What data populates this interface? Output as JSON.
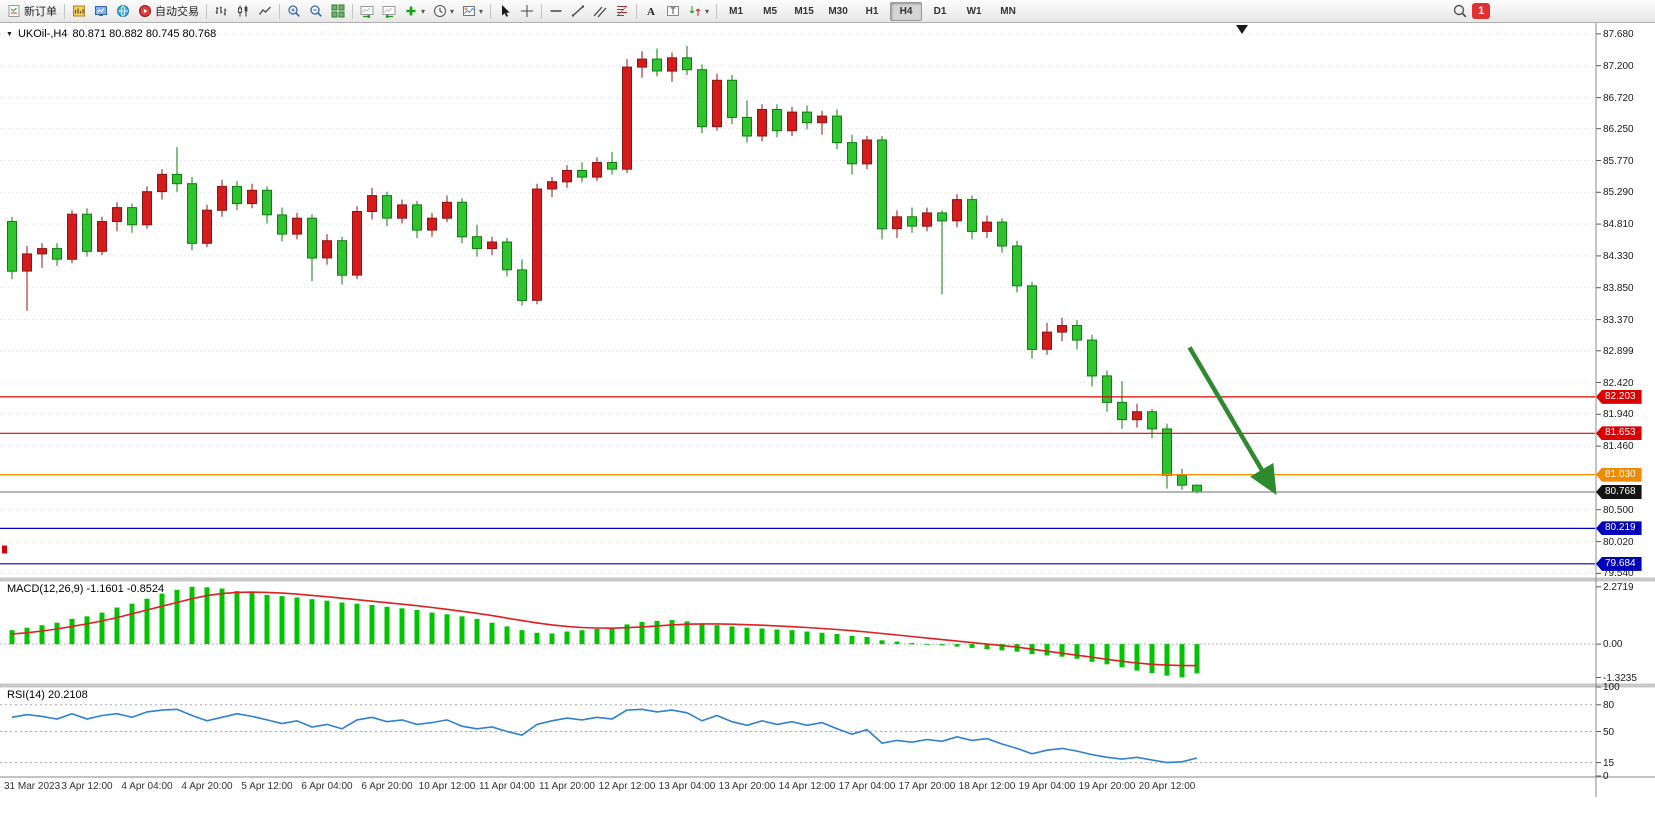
{
  "toolbar": {
    "new_order_label": "新订单",
    "autotrading_label": "自动交易",
    "timeframes": [
      "M1",
      "M5",
      "M15",
      "M30",
      "H1",
      "H4",
      "D1",
      "W1",
      "MN"
    ],
    "active_timeframe": "H4",
    "notification_count": "1",
    "icon_names": [
      "new-order-icon",
      "new-chart-icon",
      "profiles-icon",
      "community-icon",
      "autotrading-icon",
      "bar-chart-icon",
      "candlestick-chart-icon",
      "line-chart-icon",
      "zoom-in-icon",
      "zoom-out-icon",
      "tile-windows-icon",
      "auto-scroll-icon",
      "chart-shift-icon",
      "indicators-icon",
      "periods-icon",
      "templates-icon",
      "cursor-icon",
      "crosshair-icon",
      "horizontal-line-icon",
      "trendline-icon",
      "equidistant-channel-icon",
      "fibonacci-icon",
      "text-icon",
      "label-icon",
      "arrows-icon",
      "search-icon"
    ]
  },
  "chart": {
    "symbol_title": "UKOil-,H4",
    "ohlc": "80.871 80.882 80.745 80.768",
    "price_axis": [
      "87.680",
      "87.200",
      "86.720",
      "86.250",
      "85.770",
      "85.290",
      "84.810",
      "84.330",
      "83.850",
      "83.370",
      "82.899",
      "82.420",
      "81.940",
      "81.460",
      "80.500",
      "80.020",
      "79.540"
    ],
    "price_lines": [
      {
        "label": "82.203",
        "value": 82.203,
        "color": "#dd0000",
        "tag": "#dd0000"
      },
      {
        "label": "81.653",
        "value": 81.653,
        "color": "#dd0000",
        "tag": "#dd0000"
      },
      {
        "label": "81.030",
        "value": 81.03,
        "color": "#ff8a00",
        "tag": "#f08a00"
      },
      {
        "label": "80.768",
        "value": 80.768,
        "color": "#8a8a8a",
        "tag": "#141414"
      },
      {
        "label": "80.219",
        "value": 80.219,
        "color": "#0000cc",
        "tag": "#0000bb"
      },
      {
        "label": "79.684",
        "value": 79.684,
        "color": "#0000cc",
        "tag": "#0000bb"
      }
    ],
    "objects": {
      "trend_arrow": {
        "from_index": 78.5,
        "from_price": 82.95,
        "to_index": 84,
        "to_price": 80.84,
        "color": "#2d8a2d"
      },
      "left_marker_price": 79.9
    },
    "time_axis": [
      "31 Mar 2023",
      "3 Apr 12:00",
      "4 Apr 04:00",
      "4 Apr 20:00",
      "5 Apr 12:00",
      "6 Apr 04:00",
      "6 Apr 20:00",
      "10 Apr 12:00",
      "11 Apr 04:00",
      "11 Apr 20:00",
      "12 Apr 12:00",
      "13 Apr 04:00",
      "13 Apr 20:00",
      "14 Apr 12:00",
      "17 Apr 04:00",
      "17 Apr 20:00",
      "18 Apr 12:00",
      "19 Apr 04:00",
      "19 Apr 20:00",
      "20 Apr 12:00"
    ]
  },
  "indicators": {
    "macd": {
      "label": "MACD(12,26,9) -1.1601 -0.8524",
      "main_value": "-1.1601",
      "signal_value": "-0.8524",
      "axis": [
        {
          "label": "2.2719",
          "v": 2.2719
        },
        {
          "label": "0.00",
          "v": 0
        },
        {
          "label": "-1.3235",
          "v": -1.3235
        }
      ]
    },
    "rsi": {
      "label": "RSI(14) 20.2108",
      "value": "20.2108",
      "axis": [
        {
          "label": "100",
          "v": 100
        },
        {
          "label": "80",
          "v": 80
        },
        {
          "label": "50",
          "v": 50
        },
        {
          "label": "15",
          "v": 15
        },
        {
          "label": "0",
          "v": 0
        }
      ],
      "levels": [
        80,
        50,
        15
      ]
    }
  },
  "chart_data": {
    "type": "candlestick",
    "symbol": "UKOil-",
    "timeframe": "H4",
    "price_range": [
      79.47,
      87.83
    ],
    "colors": {
      "bull": "#d41c1c",
      "bear": "#2fc42f",
      "macd_histogram": "#00c400",
      "macd_signal": "#e02020",
      "rsi_line": "#2f80d0"
    },
    "candles": [
      [
        84.85,
        84.92,
        83.98,
        84.1
      ],
      [
        84.1,
        84.48,
        83.5,
        84.36
      ],
      [
        84.36,
        84.52,
        84.15,
        84.44
      ],
      [
        84.44,
        84.52,
        84.18,
        84.28
      ],
      [
        84.28,
        85.02,
        84.22,
        84.96
      ],
      [
        84.96,
        85.05,
        84.32,
        84.4
      ],
      [
        84.4,
        84.92,
        84.34,
        84.85
      ],
      [
        84.85,
        85.14,
        84.7,
        85.06
      ],
      [
        85.06,
        85.12,
        84.68,
        84.8
      ],
      [
        84.8,
        85.38,
        84.74,
        85.3
      ],
      [
        85.3,
        85.64,
        85.18,
        85.56
      ],
      [
        85.56,
        85.97,
        85.3,
        85.42
      ],
      [
        85.42,
        85.52,
        84.42,
        84.52
      ],
      [
        84.52,
        85.1,
        84.46,
        85.02
      ],
      [
        85.02,
        85.48,
        84.92,
        85.38
      ],
      [
        85.38,
        85.46,
        85.02,
        85.12
      ],
      [
        85.12,
        85.42,
        85.05,
        85.32
      ],
      [
        85.32,
        85.38,
        84.82,
        84.95
      ],
      [
        84.95,
        85.06,
        84.55,
        84.66
      ],
      [
        84.66,
        84.98,
        84.58,
        84.9
      ],
      [
        84.9,
        84.96,
        83.95,
        84.3
      ],
      [
        84.3,
        84.66,
        84.2,
        84.56
      ],
      [
        84.56,
        84.62,
        83.9,
        84.04
      ],
      [
        84.04,
        85.08,
        83.98,
        85.0
      ],
      [
        85.0,
        85.36,
        84.88,
        85.24
      ],
      [
        85.24,
        85.3,
        84.78,
        84.9
      ],
      [
        84.9,
        85.18,
        84.82,
        85.1
      ],
      [
        85.1,
        85.16,
        84.6,
        84.72
      ],
      [
        84.72,
        84.98,
        84.62,
        84.9
      ],
      [
        84.9,
        85.24,
        84.84,
        85.14
      ],
      [
        85.14,
        85.2,
        84.52,
        84.62
      ],
      [
        84.62,
        84.8,
        84.32,
        84.44
      ],
      [
        84.44,
        84.62,
        84.34,
        84.54
      ],
      [
        84.54,
        84.6,
        84.02,
        84.12
      ],
      [
        84.12,
        84.28,
        83.58,
        83.66
      ],
      [
        83.66,
        85.42,
        83.6,
        85.34
      ],
      [
        85.34,
        85.52,
        85.22,
        85.45
      ],
      [
        85.45,
        85.7,
        85.36,
        85.62
      ],
      [
        85.62,
        85.74,
        85.44,
        85.52
      ],
      [
        85.52,
        85.82,
        85.46,
        85.74
      ],
      [
        85.74,
        85.9,
        85.56,
        85.64
      ],
      [
        85.64,
        87.3,
        85.58,
        87.18
      ],
      [
        87.18,
        87.42,
        87.02,
        87.3
      ],
      [
        87.3,
        87.46,
        87.04,
        87.12
      ],
      [
        87.12,
        87.4,
        86.96,
        87.32
      ],
      [
        87.32,
        87.5,
        87.06,
        87.14
      ],
      [
        87.14,
        87.22,
        86.18,
        86.28
      ],
      [
        86.28,
        87.08,
        86.22,
        86.98
      ],
      [
        86.98,
        87.06,
        86.32,
        86.42
      ],
      [
        86.42,
        86.68,
        86.04,
        86.14
      ],
      [
        86.14,
        86.62,
        86.06,
        86.54
      ],
      [
        86.54,
        86.62,
        86.12,
        86.22
      ],
      [
        86.22,
        86.58,
        86.14,
        86.5
      ],
      [
        86.5,
        86.6,
        86.24,
        86.34
      ],
      [
        86.34,
        86.52,
        86.16,
        86.44
      ],
      [
        86.44,
        86.54,
        85.94,
        86.04
      ],
      [
        86.04,
        86.16,
        85.56,
        85.72
      ],
      [
        85.72,
        86.14,
        85.64,
        86.08
      ],
      [
        86.08,
        86.14,
        84.58,
        84.74
      ],
      [
        84.74,
        85.02,
        84.6,
        84.92
      ],
      [
        84.92,
        85.06,
        84.68,
        84.78
      ],
      [
        84.78,
        85.06,
        84.7,
        84.98
      ],
      [
        84.98,
        85.02,
        83.75,
        84.86
      ],
      [
        84.86,
        85.26,
        84.76,
        85.18
      ],
      [
        85.18,
        85.24,
        84.58,
        84.7
      ],
      [
        84.7,
        84.94,
        84.6,
        84.84
      ],
      [
        84.84,
        84.9,
        84.38,
        84.48
      ],
      [
        84.48,
        84.56,
        83.78,
        83.88
      ],
      [
        83.88,
        83.94,
        82.78,
        82.92
      ],
      [
        82.92,
        83.32,
        82.84,
        83.18
      ],
      [
        83.18,
        83.4,
        83.04,
        83.28
      ],
      [
        83.28,
        83.36,
        82.92,
        83.06
      ],
      [
        83.06,
        83.14,
        82.36,
        82.52
      ],
      [
        82.52,
        82.6,
        81.98,
        82.12
      ],
      [
        82.12,
        82.44,
        81.72,
        81.86
      ],
      [
        81.86,
        82.1,
        81.74,
        81.98
      ],
      [
        81.98,
        82.02,
        81.58,
        81.72
      ],
      [
        81.72,
        81.8,
        80.82,
        81.02
      ],
      [
        81.02,
        81.12,
        80.8,
        80.87
      ],
      [
        80.871,
        80.882,
        80.745,
        80.768
      ]
    ],
    "macd": {
      "range": [
        -1.58,
        2.5
      ],
      "histogram": [
        0.55,
        0.65,
        0.75,
        0.85,
        1.0,
        1.1,
        1.25,
        1.45,
        1.6,
        1.8,
        2.0,
        2.15,
        2.27,
        2.25,
        2.2,
        2.1,
        2.05,
        1.95,
        1.9,
        1.85,
        1.78,
        1.72,
        1.65,
        1.6,
        1.55,
        1.48,
        1.42,
        1.35,
        1.25,
        1.18,
        1.1,
        1.0,
        0.85,
        0.7,
        0.55,
        0.45,
        0.42,
        0.5,
        0.55,
        0.6,
        0.62,
        0.78,
        0.88,
        0.92,
        0.95,
        0.9,
        0.8,
        0.75,
        0.7,
        0.65,
        0.62,
        0.58,
        0.55,
        0.5,
        0.45,
        0.4,
        0.32,
        0.28,
        0.15,
        0.1,
        0.05,
        0.0,
        -0.05,
        -0.1,
        -0.15,
        -0.2,
        -0.25,
        -0.3,
        -0.4,
        -0.45,
        -0.5,
        -0.58,
        -0.7,
        -0.8,
        -0.92,
        -1.05,
        -1.15,
        -1.25,
        -1.32,
        -1.16
      ],
      "signal": [
        0.4,
        0.45,
        0.52,
        0.6,
        0.7,
        0.8,
        0.92,
        1.05,
        1.2,
        1.35,
        1.5,
        1.65,
        1.8,
        1.92,
        2.0,
        2.05,
        2.06,
        2.05,
        2.02,
        1.98,
        1.93,
        1.88,
        1.82,
        1.76,
        1.7,
        1.64,
        1.58,
        1.52,
        1.45,
        1.38,
        1.3,
        1.22,
        1.13,
        1.03,
        0.93,
        0.84,
        0.76,
        0.7,
        0.66,
        0.64,
        0.63,
        0.65,
        0.68,
        0.72,
        0.76,
        0.79,
        0.8,
        0.8,
        0.79,
        0.77,
        0.75,
        0.72,
        0.69,
        0.66,
        0.62,
        0.58,
        0.53,
        0.48,
        0.42,
        0.36,
        0.3,
        0.24,
        0.18,
        0.12,
        0.06,
        0.0,
        -0.06,
        -0.12,
        -0.2,
        -0.28,
        -0.36,
        -0.44,
        -0.52,
        -0.6,
        -0.68,
        -0.75,
        -0.8,
        -0.83,
        -0.85,
        -0.85
      ]
    },
    "rsi": {
      "range": [
        0,
        100
      ],
      "values": [
        66,
        69,
        67,
        64,
        70,
        64,
        68,
        70,
        66,
        72,
        74,
        75,
        68,
        62,
        66,
        70,
        67,
        63,
        59,
        62,
        55,
        58,
        53,
        63,
        66,
        61,
        63,
        58,
        60,
        63,
        56,
        53,
        55,
        50,
        46,
        58,
        62,
        65,
        63,
        66,
        64,
        74,
        75,
        72,
        74,
        71,
        62,
        68,
        61,
        57,
        62,
        58,
        61,
        57,
        60,
        53,
        47,
        52,
        37,
        40,
        38,
        41,
        39,
        44,
        40,
        42,
        36,
        31,
        25,
        29,
        31,
        28,
        24,
        21,
        19,
        21,
        18,
        15,
        16,
        20.21
      ]
    }
  }
}
